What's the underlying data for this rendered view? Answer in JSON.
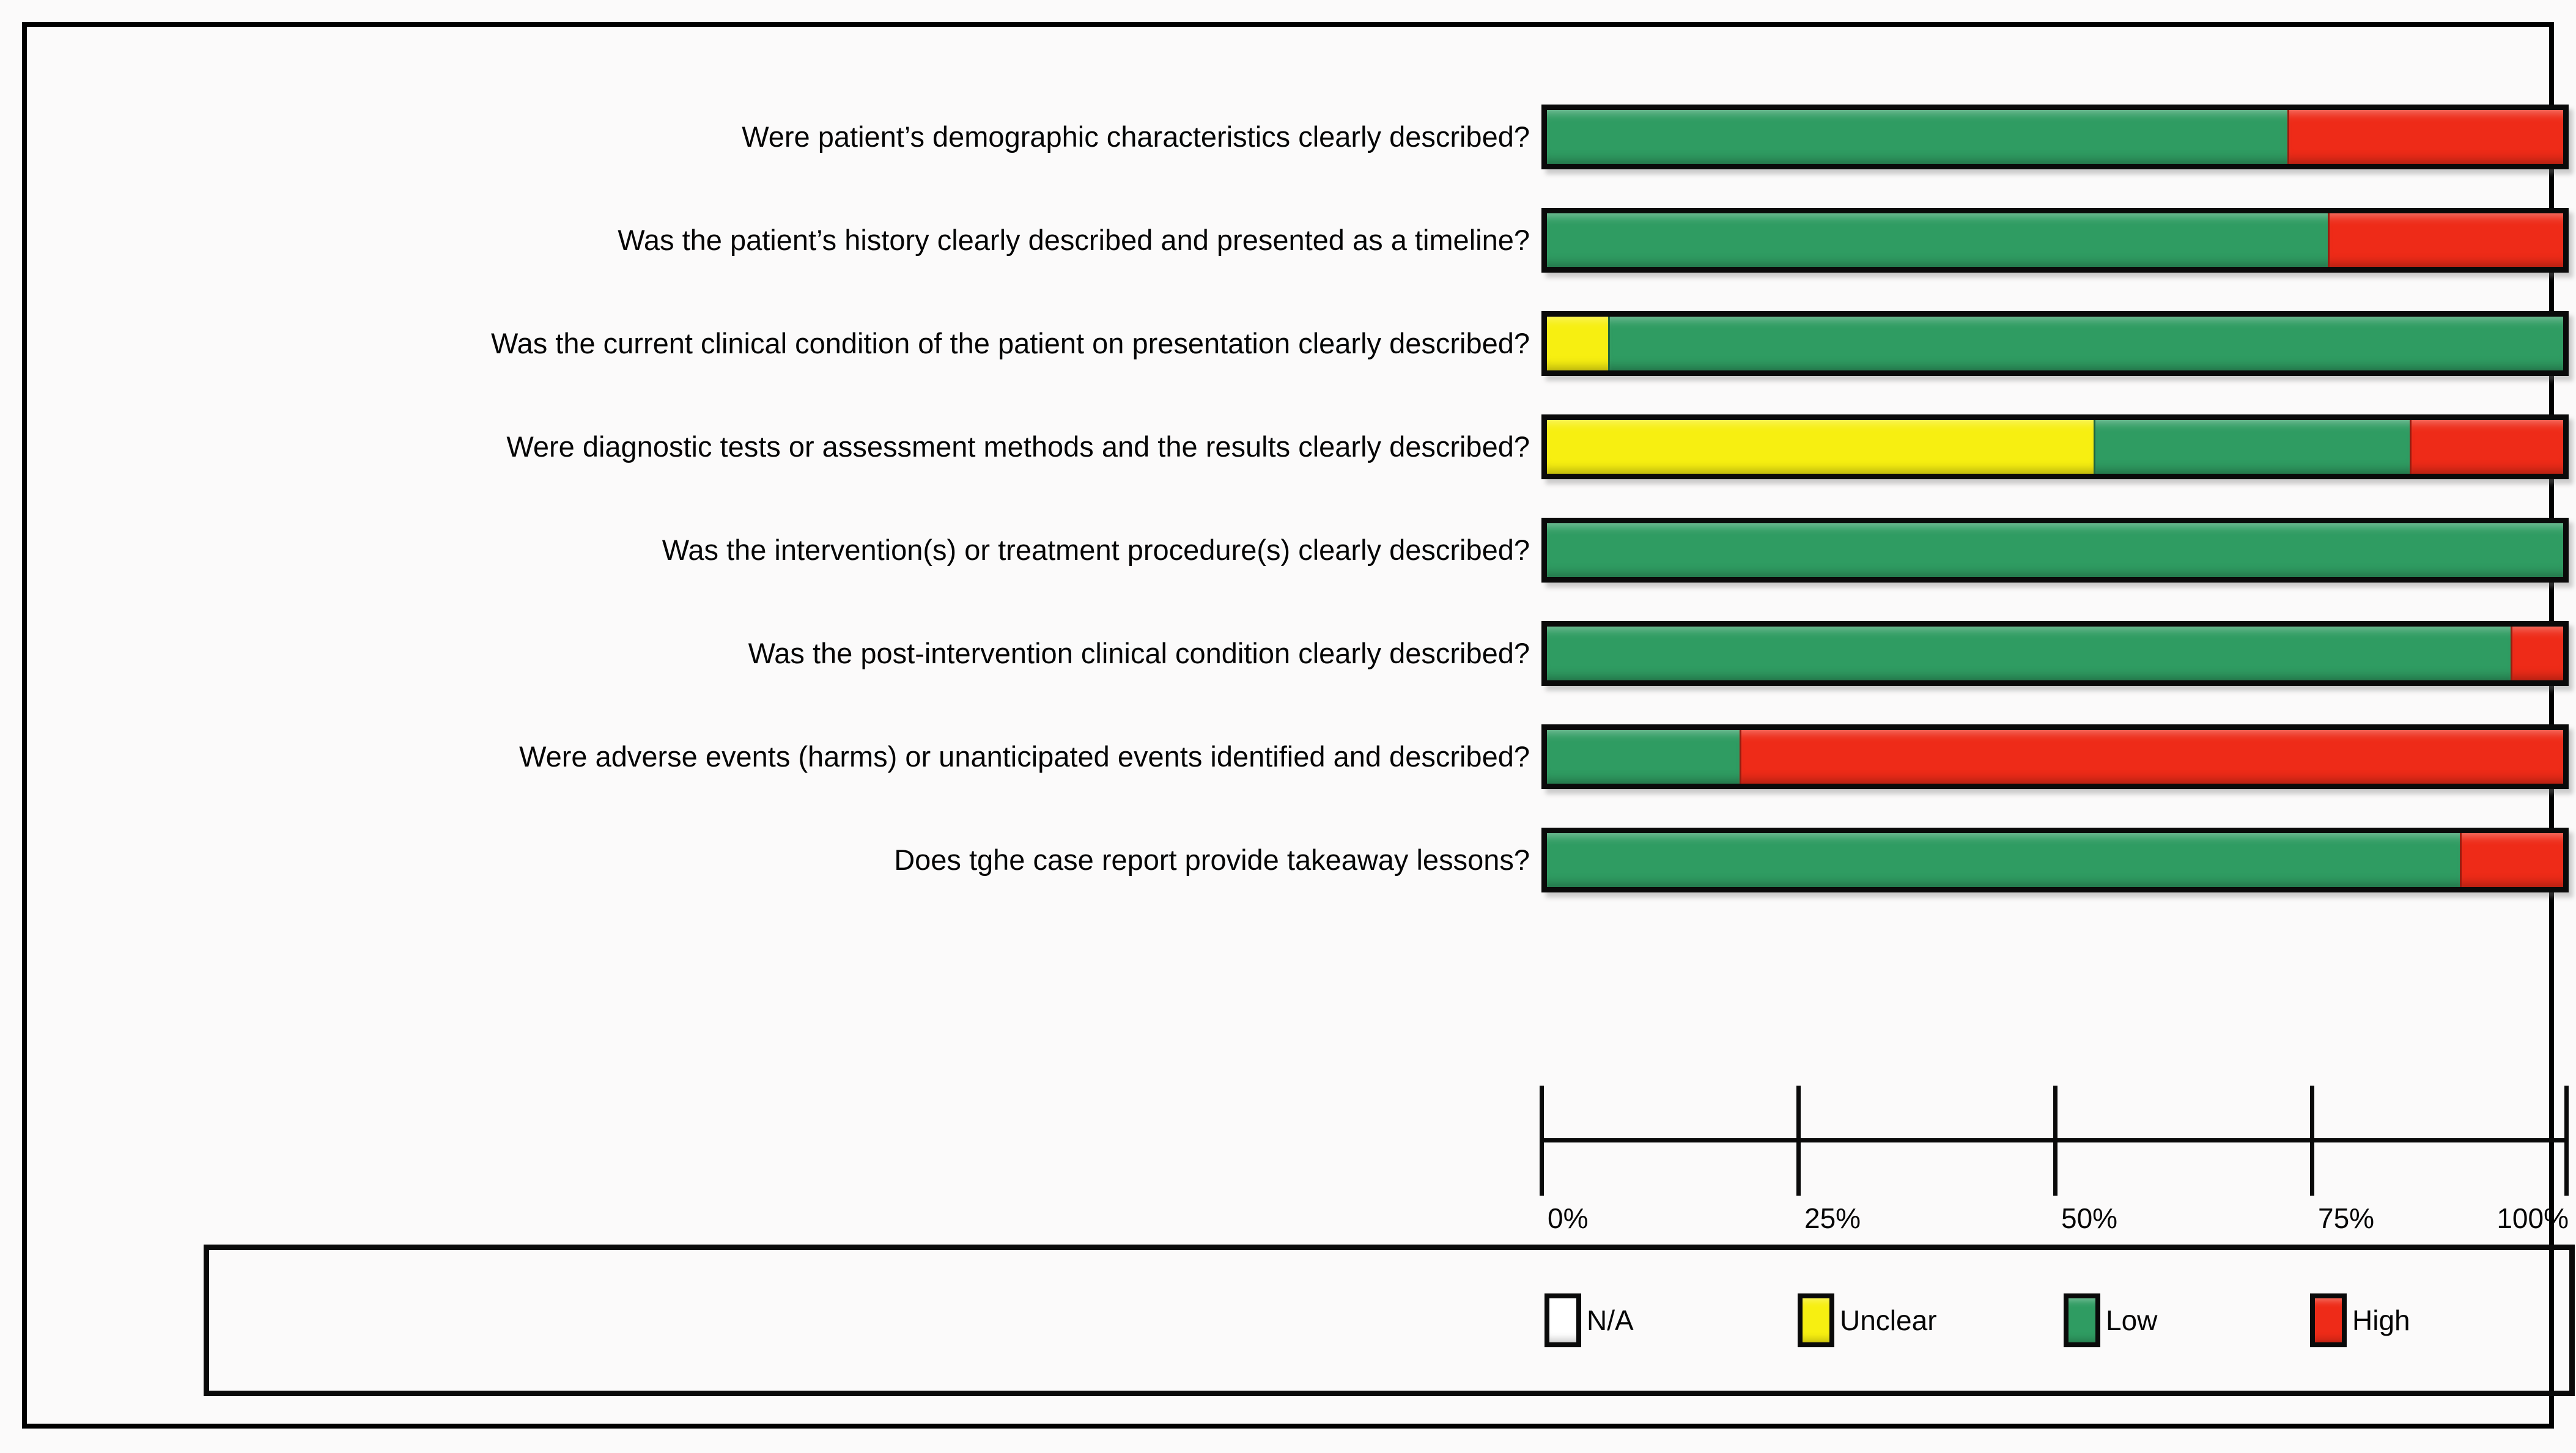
{
  "figure": {
    "background": "#fbfafa",
    "border_color": "#000000"
  },
  "chart_data": {
    "type": "bar",
    "orientation": "horizontal",
    "stacked": true,
    "title": "",
    "xlabel": "",
    "ylabel": "",
    "unit": "percent",
    "categories": [
      "Were patient’s demographic characteristics clearly described?",
      "Was the patient’s history clearly described and presented as a timeline?",
      "Was the current clinical condition of the patient on presentation clearly described?",
      "Were diagnostic tests or assessment methods and the results clearly described?",
      "Was the intervention(s) or treatment procedure(s) clearly described?",
      "Was the post-intervention clinical condition clearly described?",
      "Were adverse events (harms) or unanticipated events identified and described?",
      "Does tghe case report provide takeaway lessons?"
    ],
    "series": [
      {
        "name": "N/A",
        "color": "#ffffff",
        "values": [
          0,
          0,
          0,
          0,
          0,
          0,
          0,
          0
        ]
      },
      {
        "name": "Unclear",
        "color": "#f7ef11",
        "values": [
          0,
          0,
          6,
          54,
          0,
          0,
          0,
          0
        ]
      },
      {
        "name": "Low",
        "color": "#2f9c62",
        "values": [
          73,
          77,
          94,
          31,
          100,
          95,
          19,
          90
        ]
      },
      {
        "name": "High",
        "color": "#ee2b18",
        "values": [
          27,
          23,
          0,
          15,
          0,
          5,
          81,
          10
        ]
      }
    ],
    "x_axis": {
      "range": [
        0,
        100
      ],
      "ticks": [
        "0%",
        "25%",
        "50%",
        "75%",
        "100%"
      ]
    },
    "legend_position": "bottom",
    "grid": false
  },
  "legend": {
    "items": [
      {
        "label": "N/A",
        "color": "#ffffff"
      },
      {
        "label": "Unclear",
        "color": "#f7ef11"
      },
      {
        "label": "Low",
        "color": "#2f9c62"
      },
      {
        "label": "High",
        "color": "#ee2b18"
      }
    ]
  }
}
